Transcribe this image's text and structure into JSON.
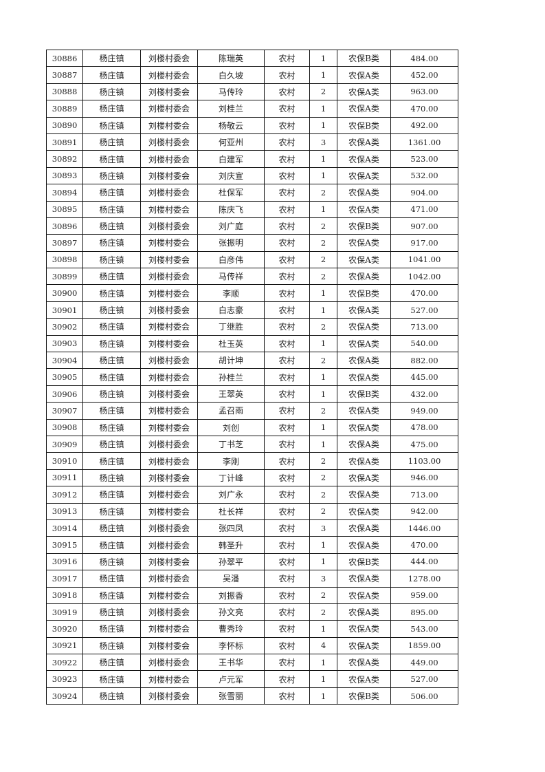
{
  "rows": [
    [
      "30886",
      "杨庄镇",
      "刘楼村委会",
      "陈瑞英",
      "农村",
      "1",
      "农保B类",
      "484.00"
    ],
    [
      "30887",
      "杨庄镇",
      "刘楼村委会",
      "白久坡",
      "农村",
      "1",
      "农保A类",
      "452.00"
    ],
    [
      "30888",
      "杨庄镇",
      "刘楼村委会",
      "马传玲",
      "农村",
      "2",
      "农保A类",
      "963.00"
    ],
    [
      "30889",
      "杨庄镇",
      "刘楼村委会",
      "刘桂兰",
      "农村",
      "1",
      "农保A类",
      "470.00"
    ],
    [
      "30890",
      "杨庄镇",
      "刘楼村委会",
      "杨敬云",
      "农村",
      "1",
      "农保B类",
      "492.00"
    ],
    [
      "30891",
      "杨庄镇",
      "刘楼村委会",
      "何亚州",
      "农村",
      "3",
      "农保A类",
      "1361.00"
    ],
    [
      "30892",
      "杨庄镇",
      "刘楼村委会",
      "白建军",
      "农村",
      "1",
      "农保A类",
      "523.00"
    ],
    [
      "30893",
      "杨庄镇",
      "刘楼村委会",
      "刘庆宣",
      "农村",
      "1",
      "农保A类",
      "532.00"
    ],
    [
      "30894",
      "杨庄镇",
      "刘楼村委会",
      "杜保军",
      "农村",
      "2",
      "农保A类",
      "904.00"
    ],
    [
      "30895",
      "杨庄镇",
      "刘楼村委会",
      "陈庆飞",
      "农村",
      "1",
      "农保A类",
      "471.00"
    ],
    [
      "30896",
      "杨庄镇",
      "刘楼村委会",
      "刘广庭",
      "农村",
      "2",
      "农保B类",
      "907.00"
    ],
    [
      "30897",
      "杨庄镇",
      "刘楼村委会",
      "张振明",
      "农村",
      "2",
      "农保A类",
      "917.00"
    ],
    [
      "30898",
      "杨庄镇",
      "刘楼村委会",
      "白彦伟",
      "农村",
      "2",
      "农保A类",
      "1041.00"
    ],
    [
      "30899",
      "杨庄镇",
      "刘楼村委会",
      "马传祥",
      "农村",
      "2",
      "农保A类",
      "1042.00"
    ],
    [
      "30900",
      "杨庄镇",
      "刘楼村委会",
      "李顺",
      "农村",
      "1",
      "农保B类",
      "470.00"
    ],
    [
      "30901",
      "杨庄镇",
      "刘楼村委会",
      "白志豪",
      "农村",
      "1",
      "农保A类",
      "527.00"
    ],
    [
      "30902",
      "杨庄镇",
      "刘楼村委会",
      "丁继胜",
      "农村",
      "2",
      "农保A类",
      "713.00"
    ],
    [
      "30903",
      "杨庄镇",
      "刘楼村委会",
      "杜玉英",
      "农村",
      "1",
      "农保A类",
      "540.00"
    ],
    [
      "30904",
      "杨庄镇",
      "刘楼村委会",
      "胡计坤",
      "农村",
      "2",
      "农保A类",
      "882.00"
    ],
    [
      "30905",
      "杨庄镇",
      "刘楼村委会",
      "孙桂兰",
      "农村",
      "1",
      "农保A类",
      "445.00"
    ],
    [
      "30906",
      "杨庄镇",
      "刘楼村委会",
      "王翠英",
      "农村",
      "1",
      "农保B类",
      "432.00"
    ],
    [
      "30907",
      "杨庄镇",
      "刘楼村委会",
      "孟召雨",
      "农村",
      "2",
      "农保A类",
      "949.00"
    ],
    [
      "30908",
      "杨庄镇",
      "刘楼村委会",
      "刘创",
      "农村",
      "1",
      "农保A类",
      "478.00"
    ],
    [
      "30909",
      "杨庄镇",
      "刘楼村委会",
      "丁书芝",
      "农村",
      "1",
      "农保A类",
      "475.00"
    ],
    [
      "30910",
      "杨庄镇",
      "刘楼村委会",
      "李刚",
      "农村",
      "2",
      "农保A类",
      "1103.00"
    ],
    [
      "30911",
      "杨庄镇",
      "刘楼村委会",
      "丁计峰",
      "农村",
      "2",
      "农保A类",
      "946.00"
    ],
    [
      "30912",
      "杨庄镇",
      "刘楼村委会",
      "刘广永",
      "农村",
      "2",
      "农保A类",
      "713.00"
    ],
    [
      "30913",
      "杨庄镇",
      "刘楼村委会",
      "杜长祥",
      "农村",
      "2",
      "农保A类",
      "942.00"
    ],
    [
      "30914",
      "杨庄镇",
      "刘楼村委会",
      "张四凤",
      "农村",
      "3",
      "农保A类",
      "1446.00"
    ],
    [
      "30915",
      "杨庄镇",
      "刘楼村委会",
      "韩圣升",
      "农村",
      "1",
      "农保A类",
      "470.00"
    ],
    [
      "30916",
      "杨庄镇",
      "刘楼村委会",
      "孙翠平",
      "农村",
      "1",
      "农保B类",
      "444.00"
    ],
    [
      "30917",
      "杨庄镇",
      "刘楼村委会",
      "吴潘",
      "农村",
      "3",
      "农保A类",
      "1278.00"
    ],
    [
      "30918",
      "杨庄镇",
      "刘楼村委会",
      "刘振香",
      "农村",
      "2",
      "农保A类",
      "959.00"
    ],
    [
      "30919",
      "杨庄镇",
      "刘楼村委会",
      "孙文亮",
      "农村",
      "2",
      "农保A类",
      "895.00"
    ],
    [
      "30920",
      "杨庄镇",
      "刘楼村委会",
      "曹秀玲",
      "农村",
      "1",
      "农保A类",
      "543.00"
    ],
    [
      "30921",
      "杨庄镇",
      "刘楼村委会",
      "李怀标",
      "农村",
      "4",
      "农保A类",
      "1859.00"
    ],
    [
      "30922",
      "杨庄镇",
      "刘楼村委会",
      "王书华",
      "农村",
      "1",
      "农保A类",
      "449.00"
    ],
    [
      "30923",
      "杨庄镇",
      "刘楼村委会",
      "卢元军",
      "农村",
      "1",
      "农保A类",
      "527.00"
    ],
    [
      "30924",
      "杨庄镇",
      "刘楼村委会",
      "张雪丽",
      "农村",
      "1",
      "农保B类",
      "506.00"
    ]
  ]
}
